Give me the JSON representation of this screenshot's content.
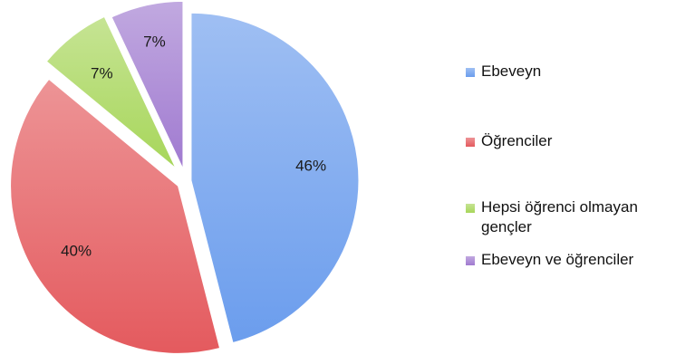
{
  "chart_data": {
    "type": "pie",
    "categories": [
      "Ebeveyn",
      "Öğrenciler",
      "Hepsi öğrenci olmayan gençler",
      "Ebeveyn ve öğrenciler"
    ],
    "values": [
      46,
      40,
      7,
      7
    ],
    "data_labels": [
      "46%",
      "40%",
      "7%",
      "7%"
    ],
    "colors": [
      "#6b9ded",
      "#e45a5e",
      "#a7d65a",
      "#a07ad0"
    ],
    "exploded": true,
    "legend_position": "right"
  }
}
